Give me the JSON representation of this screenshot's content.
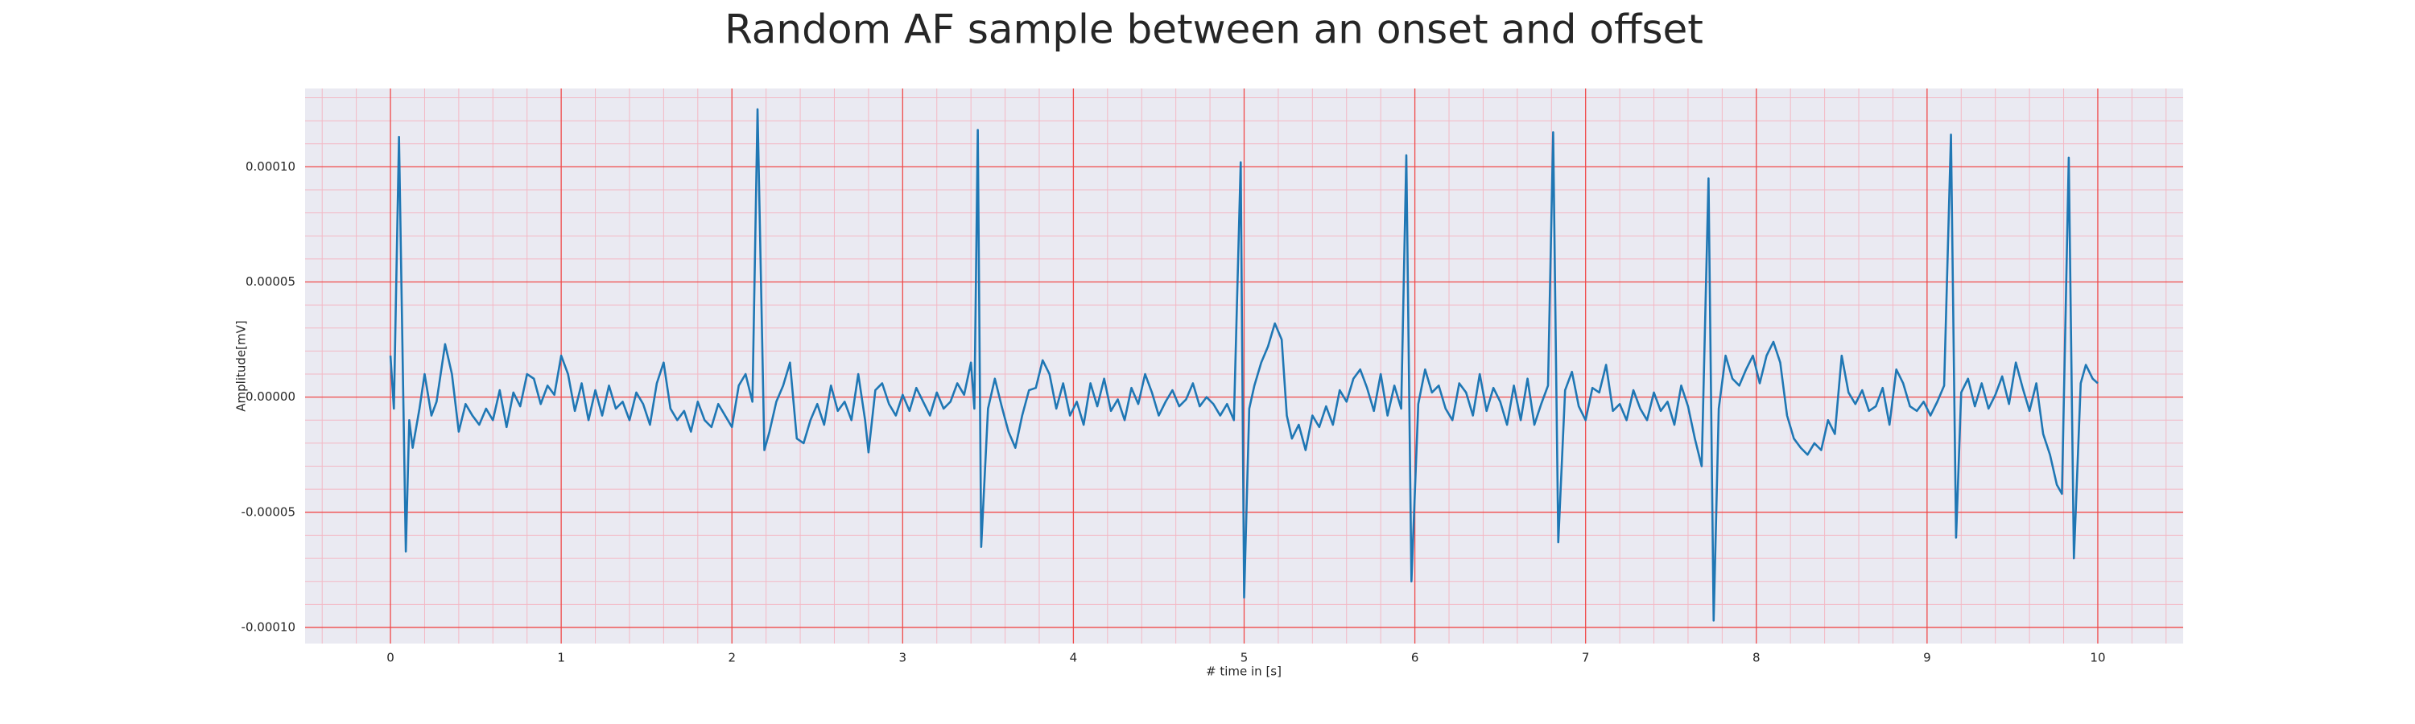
{
  "chart_data": {
    "type": "line",
    "title": "Random AF sample between an onset and offset",
    "xlabel": "# time in [s]",
    "ylabel": "Amplitude[mV]",
    "color": "#1f77b4",
    "grid": true,
    "minor_grid": true,
    "xlim": [
      -0.5,
      10.5
    ],
    "ylim": [
      -0.000107,
      0.000134
    ],
    "xticks": [
      0,
      1,
      2,
      3,
      4,
      5,
      6,
      7,
      8,
      9,
      10
    ],
    "yticks": [
      {
        "value": -0.0001,
        "label": "-0.00010"
      },
      {
        "value": -5e-05,
        "label": "-0.00005"
      },
      {
        "value": 0,
        "label": "0.00000"
      },
      {
        "value": 5e-05,
        "label": "0.00005"
      },
      {
        "value": 0.0001,
        "label": "0.00010"
      }
    ],
    "x": [
      0,
      0.02,
      0.05,
      0.09,
      0.11,
      0.13,
      0.17,
      0.2,
      0.24,
      0.27,
      0.32,
      0.36,
      0.4,
      0.44,
      0.48,
      0.52,
      0.56,
      0.6,
      0.64,
      0.68,
      0.72,
      0.76,
      0.8,
      0.84,
      0.88,
      0.92,
      0.96,
      1.0,
      1.04,
      1.08,
      1.12,
      1.16,
      1.2,
      1.24,
      1.28,
      1.32,
      1.36,
      1.4,
      1.44,
      1.48,
      1.52,
      1.56,
      1.6,
      1.64,
      1.68,
      1.72,
      1.76,
      1.8,
      1.84,
      1.88,
      1.92,
      1.96,
      2.0,
      2.04,
      2.08,
      2.12,
      2.15,
      2.19,
      2.22,
      2.26,
      2.3,
      2.34,
      2.38,
      2.42,
      2.46,
      2.5,
      2.54,
      2.58,
      2.62,
      2.66,
      2.7,
      2.74,
      2.78,
      2.8,
      2.84,
      2.88,
      2.92,
      2.96,
      3.0,
      3.04,
      3.08,
      3.12,
      3.16,
      3.2,
      3.24,
      3.28,
      3.32,
      3.36,
      3.4,
      3.42,
      3.44,
      3.46,
      3.5,
      3.54,
      3.58,
      3.62,
      3.66,
      3.7,
      3.74,
      3.78,
      3.82,
      3.86,
      3.9,
      3.94,
      3.98,
      4.02,
      4.06,
      4.1,
      4.14,
      4.18,
      4.22,
      4.26,
      4.3,
      4.34,
      4.38,
      4.42,
      4.46,
      4.5,
      4.54,
      4.58,
      4.62,
      4.66,
      4.7,
      4.74,
      4.78,
      4.82,
      4.86,
      4.9,
      4.94,
      4.98,
      5.0,
      5.03,
      5.06,
      5.1,
      5.14,
      5.18,
      5.22,
      5.25,
      5.28,
      5.32,
      5.36,
      5.4,
      5.44,
      5.48,
      5.52,
      5.56,
      5.6,
      5.64,
      5.68,
      5.72,
      5.76,
      5.8,
      5.84,
      5.88,
      5.92,
      5.95,
      5.98,
      6.02,
      6.06,
      6.1,
      6.14,
      6.18,
      6.22,
      6.26,
      6.3,
      6.34,
      6.38,
      6.42,
      6.46,
      6.5,
      6.54,
      6.58,
      6.62,
      6.66,
      6.7,
      6.74,
      6.78,
      6.81,
      6.84,
      6.88,
      6.92,
      6.96,
      7.0,
      7.04,
      7.08,
      7.12,
      7.16,
      7.2,
      7.24,
      7.28,
      7.32,
      7.36,
      7.4,
      7.44,
      7.48,
      7.52,
      7.56,
      7.6,
      7.64,
      7.68,
      7.72,
      7.75,
      7.78,
      7.82,
      7.86,
      7.9,
      7.94,
      7.98,
      8.02,
      8.06,
      8.1,
      8.14,
      8.18,
      8.22,
      8.26,
      8.3,
      8.34,
      8.38,
      8.42,
      8.46,
      8.5,
      8.54,
      8.58,
      8.62,
      8.66,
      8.7,
      8.74,
      8.78,
      8.82,
      8.86,
      8.9,
      8.94,
      8.98,
      9.02,
      9.06,
      9.1,
      9.14,
      9.17,
      9.2,
      9.24,
      9.28,
      9.32,
      9.36,
      9.4,
      9.44,
      9.48,
      9.52,
      9.56,
      9.6,
      9.64,
      9.68,
      9.72,
      9.76,
      9.79,
      9.83,
      9.86,
      9.9,
      9.93,
      9.97,
      10.0
    ],
    "values": [
      1.8e-05,
      -5e-06,
      0.000113,
      -6.7e-05,
      -1e-05,
      -2.2e-05,
      -5e-06,
      1e-05,
      -8e-06,
      -2e-06,
      2.3e-05,
      1e-05,
      -1.5e-05,
      -3e-06,
      -8e-06,
      -1.2e-05,
      -5e-06,
      -1e-05,
      3e-06,
      -1.3e-05,
      2e-06,
      -4e-06,
      1e-05,
      8e-06,
      -3e-06,
      5e-06,
      1e-06,
      1.8e-05,
      1e-05,
      -6e-06,
      6e-06,
      -1e-05,
      3e-06,
      -8e-06,
      5e-06,
      -5e-06,
      -2e-06,
      -1e-05,
      2e-06,
      -3e-06,
      -1.2e-05,
      6e-06,
      1.5e-05,
      -5e-06,
      -1e-05,
      -6e-06,
      -1.5e-05,
      -2e-06,
      -1e-05,
      -1.3e-05,
      -3e-06,
      -8e-06,
      -1.3e-05,
      5e-06,
      1e-05,
      -2e-06,
      0.000125,
      -2.3e-05,
      -1.5e-05,
      -2e-06,
      5e-06,
      1.5e-05,
      -1.8e-05,
      -2e-05,
      -1e-05,
      -3e-06,
      -1.2e-05,
      5e-06,
      -6e-06,
      -2e-06,
      -1e-05,
      1e-05,
      -1e-05,
      -2.4e-05,
      3e-06,
      6e-06,
      -3e-06,
      -8e-06,
      1e-06,
      -6e-06,
      4e-06,
      -2e-06,
      -8e-06,
      2e-06,
      -5e-06,
      -2e-06,
      6e-06,
      1e-06,
      1.5e-05,
      -5e-06,
      0.000116,
      -6.5e-05,
      -5e-06,
      8e-06,
      -4e-06,
      -1.5e-05,
      -2.2e-05,
      -8e-06,
      3e-06,
      4e-06,
      1.6e-05,
      1e-05,
      -5e-06,
      6e-06,
      -8e-06,
      -2e-06,
      -1.2e-05,
      6e-06,
      -4e-06,
      8e-06,
      -6e-06,
      -1e-06,
      -1e-05,
      4e-06,
      -3e-06,
      1e-05,
      2e-06,
      -8e-06,
      -2e-06,
      3e-06,
      -4e-06,
      -1e-06,
      6e-06,
      -4e-06,
      0,
      -3e-06,
      -8e-06,
      -3e-06,
      -1e-05,
      0.000102,
      -8.7e-05,
      -5e-06,
      5e-06,
      1.5e-05,
      2.2e-05,
      3.2e-05,
      2.5e-05,
      -8e-06,
      -1.8e-05,
      -1.2e-05,
      -2.3e-05,
      -8e-06,
      -1.3e-05,
      -4e-06,
      -1.2e-05,
      3e-06,
      -2e-06,
      8e-06,
      1.2e-05,
      4e-06,
      -6e-06,
      1e-05,
      -8e-06,
      5e-06,
      -5e-06,
      0.000105,
      -8e-05,
      -3e-06,
      1.2e-05,
      2e-06,
      5e-06,
      -5e-06,
      -1e-05,
      6e-06,
      2e-06,
      -8e-06,
      1e-05,
      -6e-06,
      4e-06,
      -2e-06,
      -1.2e-05,
      5e-06,
      -1e-05,
      8e-06,
      -1.2e-05,
      -3e-06,
      5e-06,
      0.000115,
      -6.3e-05,
      3e-06,
      1.1e-05,
      -4e-06,
      -1e-05,
      4e-06,
      2e-06,
      1.4e-05,
      -6e-06,
      -3e-06,
      -1e-05,
      3e-06,
      -5e-06,
      -1e-05,
      2e-06,
      -6e-06,
      -2e-06,
      -1.2e-05,
      5e-06,
      -4e-06,
      -1.8e-05,
      -3e-05,
      9.5e-05,
      -9.7e-05,
      -5e-06,
      1.8e-05,
      8e-06,
      5e-06,
      1.2e-05,
      1.8e-05,
      6e-06,
      1.8e-05,
      2.4e-05,
      1.5e-05,
      -8e-06,
      -1.8e-05,
      -2.2e-05,
      -2.5e-05,
      -2e-05,
      -2.3e-05,
      -1e-05,
      -1.6e-05,
      1.8e-05,
      2e-06,
      -3e-06,
      3e-06,
      -6e-06,
      -4e-06,
      4e-06,
      -1.2e-05,
      1.2e-05,
      6e-06,
      -4e-06,
      -6e-06,
      -2e-06,
      -8e-06,
      -2e-06,
      5e-06,
      0.000114,
      -6.1e-05,
      2e-06,
      8e-06,
      -4e-06,
      6e-06,
      -5e-06,
      1e-06,
      9e-06,
      -3e-06,
      1.5e-05,
      4e-06,
      -6e-06,
      6e-06,
      -1.6e-05,
      -2.5e-05,
      -3.8e-05,
      -4.2e-05,
      0.000104,
      -7e-05,
      6e-06,
      1.4e-05,
      8e-06,
      6e-06
    ]
  }
}
